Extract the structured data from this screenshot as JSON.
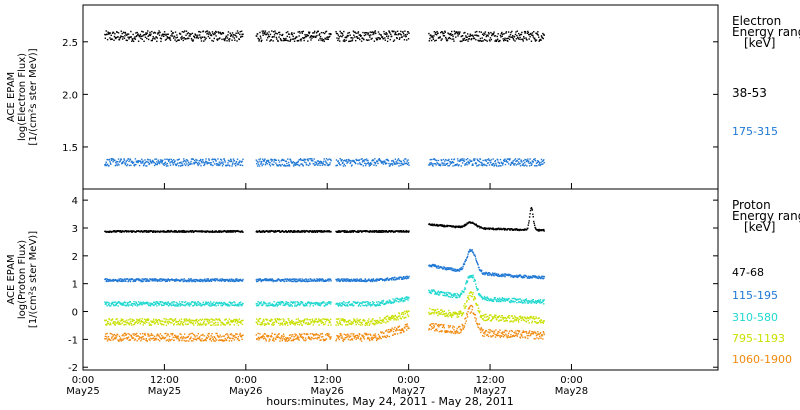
{
  "chart_data": [
    {
      "type": "scatter",
      "title": "",
      "ylabel_lines": [
        "ACE EPAM",
        "log(Electron Flux)",
        "[1/(cm²s ster MeV)]"
      ],
      "ylim": [
        1.1,
        2.85
      ],
      "yticks": [
        1.5,
        2.0,
        2.5
      ],
      "ytick_labels": [
        "1.5",
        "2.0",
        "2.5"
      ],
      "legend_title": [
        "Electron",
        "Energy range",
        "[keV]"
      ],
      "series": [
        {
          "name": "38-53",
          "color": "#000000",
          "level": 2.56,
          "noise": 0.05
        },
        {
          "name": "175-315",
          "color": "#1f77d4",
          "level": 1.36,
          "noise": 0.035
        }
      ]
    },
    {
      "type": "scatter",
      "title": "",
      "ylabel_lines": [
        "ACE EPAM",
        "log(Proton Flux)",
        "[1/(cm²s ster MeV)]"
      ],
      "ylim": [
        -2.1,
        4.4
      ],
      "yticks": [
        -2,
        -1,
        0,
        1,
        2,
        3,
        4
      ],
      "ytick_labels": [
        "-2",
        "-1",
        "0",
        "1",
        "2",
        "3",
        "4"
      ],
      "legend_title": [
        "Proton",
        "Energy range",
        "[keV]"
      ],
      "series": [
        {
          "name": "47-68",
          "color": "#000000",
          "level": 2.9,
          "noise": 0.03
        },
        {
          "name": "115-195",
          "color": "#1f77d4",
          "level": 1.15,
          "noise": 0.05
        },
        {
          "name": "310-580",
          "color": "#20d8d0",
          "level": 0.3,
          "noise": 0.08
        },
        {
          "name": "795-1193",
          "color": "#c8e000",
          "level": -0.35,
          "noise": 0.12
        },
        {
          "name": "1060-1900",
          "color": "#f08a10",
          "level": -0.9,
          "noise": 0.14
        }
      ]
    }
  ],
  "x_axis": {
    "xlim_days": [
      0,
      3.9
    ],
    "ticks": [
      {
        "day": 0.0,
        "time": "0:00",
        "date": "May25"
      },
      {
        "day": 0.5,
        "time": "12:00",
        "date": "May25"
      },
      {
        "day": 1.0,
        "time": "0:00",
        "date": "May26"
      },
      {
        "day": 1.5,
        "time": "12:00",
        "date": "May26"
      },
      {
        "day": 2.0,
        "time": "0:00",
        "date": "May27"
      },
      {
        "day": 2.5,
        "time": "12:00",
        "date": "May27"
      },
      {
        "day": 3.0,
        "time": "0:00",
        "date": "May28"
      }
    ],
    "xlabel": "hours:minutes, May 24, 2011 - May 28, 2011"
  }
}
